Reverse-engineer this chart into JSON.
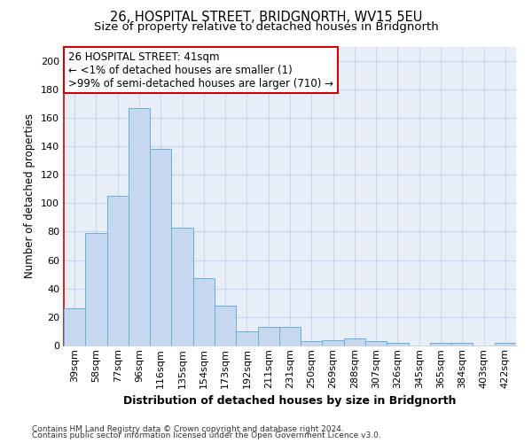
{
  "title1": "26, HOSPITAL STREET, BRIDGNORTH, WV15 5EU",
  "title2": "Size of property relative to detached houses in Bridgnorth",
  "xlabel": "Distribution of detached houses by size in Bridgnorth",
  "ylabel": "Number of detached properties",
  "categories": [
    "39sqm",
    "58sqm",
    "77sqm",
    "96sqm",
    "116sqm",
    "135sqm",
    "154sqm",
    "173sqm",
    "192sqm",
    "211sqm",
    "231sqm",
    "250sqm",
    "269sqm",
    "288sqm",
    "307sqm",
    "326sqm",
    "345sqm",
    "365sqm",
    "384sqm",
    "403sqm",
    "422sqm"
  ],
  "values": [
    26,
    79,
    105,
    167,
    138,
    83,
    47,
    28,
    10,
    13,
    13,
    3,
    4,
    5,
    3,
    2,
    0,
    2,
    2,
    0,
    2
  ],
  "bar_color": "#c5d8f0",
  "bar_edge_color": "#6aaed6",
  "annotation_line1": "26 HOSPITAL STREET: 41sqm",
  "annotation_line2": "← <1% of detached houses are smaller (1)",
  "annotation_line3": ">99% of semi-detached houses are larger (710) →",
  "annotation_box_color": "#ffffff",
  "annotation_box_edge_color": "#cc0000",
  "ylim": [
    0,
    210
  ],
  "yticks": [
    0,
    20,
    40,
    60,
    80,
    100,
    120,
    140,
    160,
    180,
    200
  ],
  "grid_color": "#c8d4e8",
  "bg_color": "#e8eef8",
  "footer1": "Contains HM Land Registry data © Crown copyright and database right 2024.",
  "footer2": "Contains public sector information licensed under the Open Government Licence v3.0.",
  "title1_fontsize": 10.5,
  "title2_fontsize": 9.5,
  "xlabel_fontsize": 9,
  "ylabel_fontsize": 8.5,
  "tick_fontsize": 8,
  "annotation_fontsize": 8.5,
  "footer_fontsize": 6.5,
  "left_spine_color": "#cc0000"
}
